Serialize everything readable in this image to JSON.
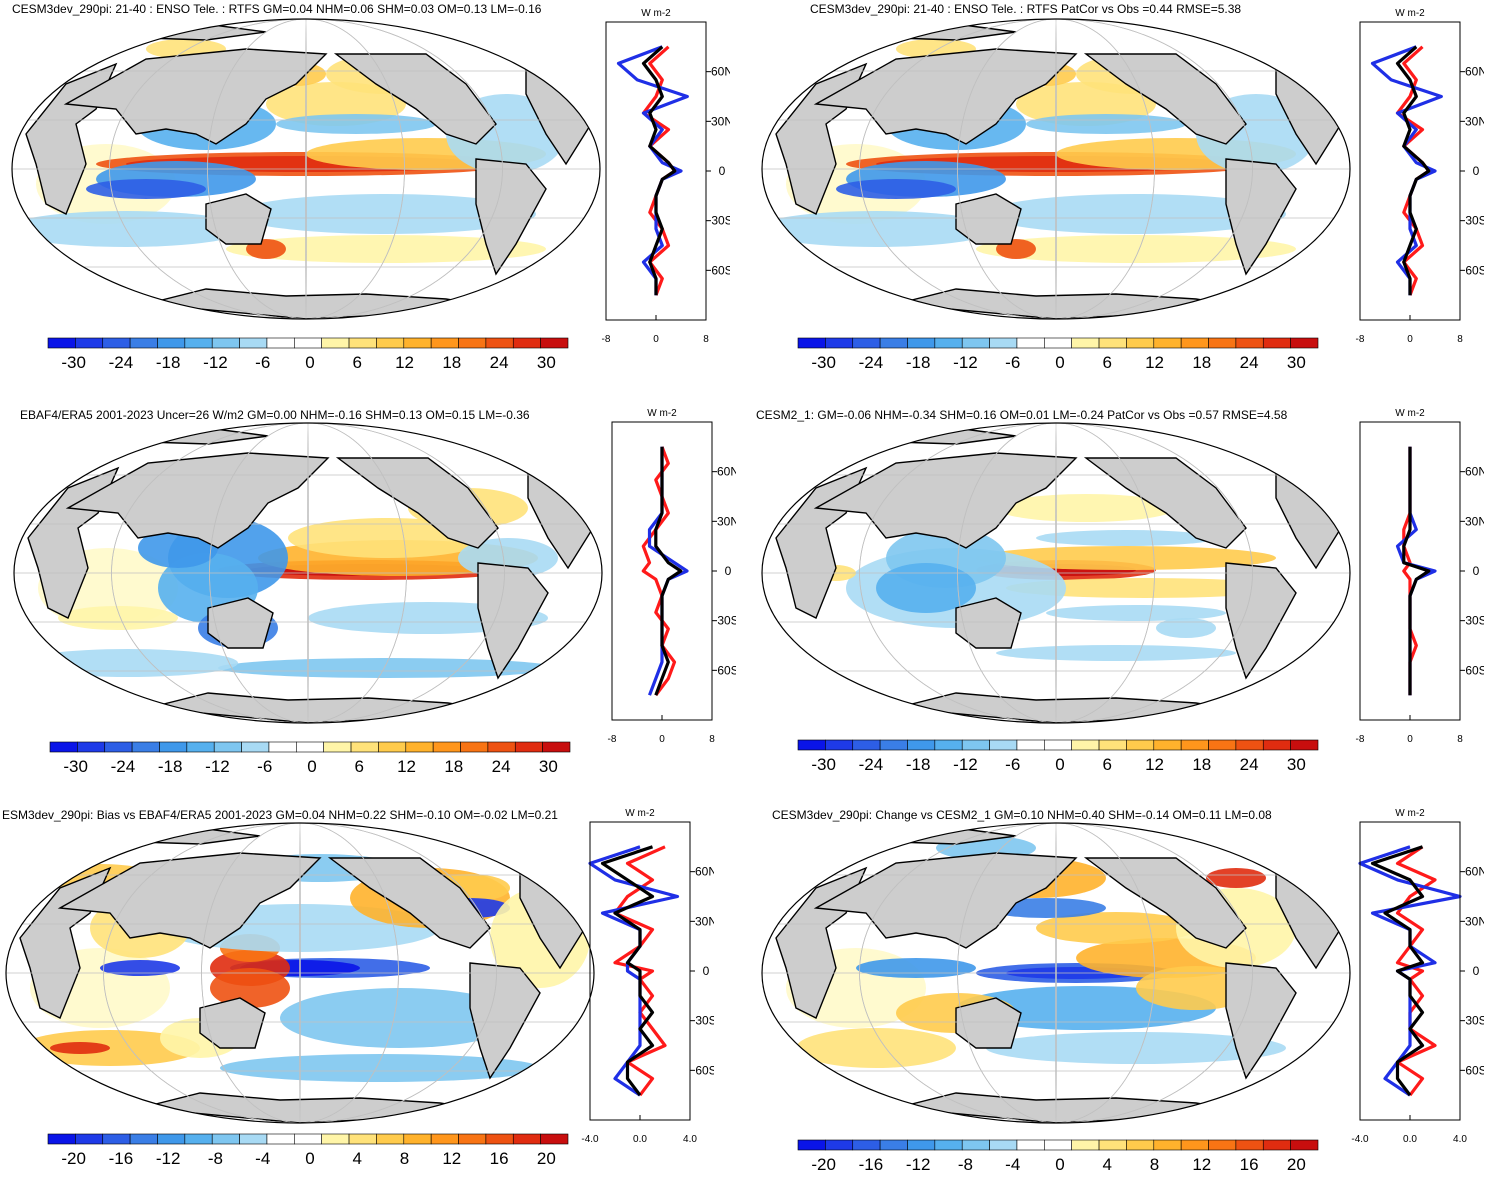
{
  "panels": [
    {
      "title": "CESM3dev_290pi: 21-40 : ENSO Tele. : RTFS GM=0.04 NHM=0.06 SHM=0.03 OM=0.13 LM=-0.16",
      "colorbar": [
        "-30",
        "-24",
        "-18",
        "-12",
        "-6",
        "0",
        "6",
        "12",
        "18",
        "24",
        "30"
      ],
      "profile_unit": "W m-2",
      "profile_x_ticks": [
        "-8",
        "0",
        "8"
      ],
      "profile_lat_ticks": [
        "60N",
        "30N",
        "0",
        "30S",
        "60S"
      ]
    },
    {
      "title": "CESM3dev_290pi: 21-40 : ENSO Tele. : RTFS PatCor vs Obs =0.44 RMSE=5.38",
      "colorbar": [
        "-30",
        "-24",
        "-18",
        "-12",
        "-6",
        "0",
        "6",
        "12",
        "18",
        "24",
        "30"
      ],
      "profile_unit": "W m-2",
      "profile_x_ticks": [
        "-8",
        "0",
        "8"
      ],
      "profile_lat_ticks": [
        "60N",
        "30N",
        "0",
        "30S",
        "60S"
      ]
    },
    {
      "title": "EBAF4/ERA5 2001-2023 Uncer=26 W/m2 GM=0.00 NHM=-0.16 SHM=0.13 OM=0.15 LM=-0.36",
      "colorbar": [
        "-30",
        "-24",
        "-18",
        "-12",
        "-6",
        "0",
        "6",
        "12",
        "18",
        "24",
        "30"
      ],
      "profile_unit": "W m-2",
      "profile_x_ticks": [
        "-8",
        "0",
        "8"
      ],
      "profile_lat_ticks": [
        "60N",
        "30N",
        "0",
        "30S",
        "60S"
      ]
    },
    {
      "title": "CESM2_1: GM=-0.06 NHM=-0.34 SHM=0.16 OM=0.01 LM=-0.24 PatCor vs Obs =0.57 RMSE=4.58",
      "colorbar": [
        "-30",
        "-24",
        "-18",
        "-12",
        "-6",
        "0",
        "6",
        "12",
        "18",
        "24",
        "30"
      ],
      "profile_unit": "W m-2",
      "profile_x_ticks": [
        "-8",
        "0",
        "8"
      ],
      "profile_lat_ticks": [
        "60N",
        "30N",
        "0",
        "30S",
        "60S"
      ]
    },
    {
      "title": "ESM3dev_290pi: Bias vs EBAF4/ERA5 2001-2023 GM=0.04 NHM=0.22 SHM=-0.10 OM=-0.02 LM=0.21",
      "colorbar": [
        "-20",
        "-16",
        "-12",
        "-8",
        "-4",
        "0",
        "4",
        "8",
        "12",
        "16",
        "20"
      ],
      "profile_unit": "W m-2",
      "profile_x_ticks": [
        "-4.0",
        "0.0",
        "4.0"
      ],
      "profile_lat_ticks": [
        "60N",
        "30N",
        "0",
        "30S",
        "60S"
      ]
    },
    {
      "title": "CESM3dev_290pi: Change vs CESM2_1 GM=0.10 NHM=0.40 SHM=-0.14 OM=0.11 LM=0.08",
      "colorbar": [
        "-20",
        "-16",
        "-12",
        "-8",
        "-4",
        "0",
        "4",
        "8",
        "12",
        "16",
        "20"
      ],
      "profile_unit": "W m-2",
      "profile_x_ticks": [
        "-4.0",
        "0.0",
        "4.0"
      ],
      "profile_lat_ticks": [
        "60N",
        "30N",
        "0",
        "30S",
        "60S"
      ]
    }
  ],
  "colors": {
    "palette": [
      "#0a14e8",
      "#1e3ae8",
      "#2d5ee6",
      "#3a7ee6",
      "#3f98ea",
      "#56b0ee",
      "#7ec6f0",
      "#a8daf4",
      "#ffffff",
      "#ffffff",
      "#fff5a8",
      "#ffe27a",
      "#ffcb4c",
      "#ffb22c",
      "#ff961c",
      "#f87414",
      "#ee5212",
      "#e02c10",
      "#c80e0e"
    ],
    "land": "#cdcdcd",
    "grid": "#c0c0c0",
    "profile_model": "#ff1a1a",
    "profile_obs": "#1f2fe6",
    "profile_diff": "#000000"
  },
  "chart_data": [
    {
      "type": "heatmap",
      "title": "CESM3dev_290pi: 21-40 : ENSO Tele. : RTFS GM=0.04 NHM=0.06 SHM=0.03 OM=0.13 LM=-0.16",
      "colorbar_range": [
        -30,
        30
      ],
      "zonal_profile": {
        "lat": [
          75,
          65,
          55,
          45,
          35,
          25,
          15,
          5,
          0,
          -5,
          -15,
          -25,
          -35,
          -45,
          -55,
          -65,
          -75
        ],
        "series": [
          {
            "name": "model",
            "color": "#ff1a1a",
            "values": [
              2,
              -1,
              1,
              0,
              -2,
              2,
              -1,
              2,
              3,
              1,
              0,
              -1,
              1,
              2,
              -1,
              1,
              0
            ]
          },
          {
            "name": "obs",
            "color": "#1f2fe6",
            "values": [
              1,
              -6,
              -3,
              5,
              -2,
              1,
              -1,
              1,
              4,
              1,
              0,
              0,
              0,
              1,
              -2,
              0,
              0
            ]
          },
          {
            "name": "diff",
            "color": "#000000",
            "values": [
              1,
              -2,
              0,
              1,
              -1,
              0,
              -1,
              2,
              3,
              1,
              0,
              0,
              1,
              0,
              -1,
              0,
              0
            ]
          }
        ],
        "xlim": [
          -8,
          8
        ]
      }
    },
    {
      "type": "heatmap",
      "title": "CESM3dev_290pi: 21-40 : ENSO Tele. : RTFS PatCor vs Obs =0.44 RMSE=5.38",
      "colorbar_range": [
        -30,
        30
      ],
      "zonal_profile": {
        "lat": [
          75,
          65,
          55,
          45,
          35,
          25,
          15,
          5,
          0,
          -5,
          -15,
          -25,
          -35,
          -45,
          -55,
          -65,
          -75
        ],
        "series": [
          {
            "name": "model",
            "color": "#ff1a1a",
            "values": [
              2,
              -1,
              1,
              0,
              -2,
              2,
              -1,
              2,
              3,
              1,
              0,
              -1,
              1,
              2,
              -1,
              1,
              0
            ]
          },
          {
            "name": "obs",
            "color": "#1f2fe6",
            "values": [
              1,
              -6,
              -3,
              5,
              -2,
              1,
              -1,
              1,
              4,
              1,
              0,
              0,
              0,
              1,
              -2,
              0,
              0
            ]
          },
          {
            "name": "diff",
            "color": "#000000",
            "values": [
              1,
              -2,
              0,
              1,
              -1,
              0,
              -1,
              2,
              3,
              1,
              0,
              0,
              1,
              0,
              -1,
              0,
              0
            ]
          }
        ],
        "xlim": [
          -8,
          8
        ]
      }
    },
    {
      "type": "heatmap",
      "title": "EBAF4/ERA5 2001-2023 Uncer=26 W/m2 GM=0.00 NHM=-0.16 SHM=0.13 OM=0.15 LM=-0.36",
      "colorbar_range": [
        -30,
        30
      ],
      "zonal_profile": {
        "lat": [
          75,
          65,
          55,
          45,
          35,
          25,
          15,
          5,
          0,
          -5,
          -15,
          -25,
          -35,
          -45,
          -55,
          -65,
          -75
        ],
        "series": [
          {
            "name": "model",
            "color": "#ff1a1a",
            "values": [
              0,
              1,
              -1,
              0,
              1,
              -1,
              -3,
              -2,
              -3,
              -1,
              0,
              -1,
              1,
              0,
              2,
              1,
              -1
            ]
          },
          {
            "name": "obs",
            "color": "#1f2fe6",
            "values": [
              0,
              0,
              0,
              0,
              0,
              -2,
              -2,
              2,
              4,
              1,
              0,
              0,
              0,
              0,
              0,
              -1,
              -2
            ]
          },
          {
            "name": "diff",
            "color": "#000000",
            "values": [
              0,
              0,
              0,
              0,
              0,
              -1,
              -1,
              1,
              3,
              1,
              0,
              0,
              0,
              0,
              1,
              0,
              -1
            ]
          }
        ],
        "xlim": [
          -8,
          8
        ]
      }
    },
    {
      "type": "heatmap",
      "title": "CESM2_1: GM=-0.06 NHM=-0.34 SHM=0.16 OM=0.01 LM=-0.24 PatCor vs Obs =0.57 RMSE=4.58",
      "colorbar_range": [
        -30,
        30
      ],
      "zonal_profile": {
        "lat": [
          75,
          65,
          55,
          45,
          35,
          25,
          15,
          5,
          0,
          -5,
          -15,
          -25,
          -35,
          -45,
          -55,
          -65,
          -75
        ],
        "series": [
          {
            "name": "model",
            "color": "#ff1a1a",
            "values": [
              0,
              0,
              0,
              0,
              0,
              -1,
              -1,
              0,
              -1,
              0,
              0,
              0,
              0,
              1,
              0,
              0,
              0
            ]
          },
          {
            "name": "obs",
            "color": "#1f2fe6",
            "values": [
              0,
              0,
              0,
              0,
              0,
              1,
              -2,
              -1,
              4,
              1,
              0,
              0,
              0,
              0,
              0,
              0,
              0
            ]
          },
          {
            "name": "diff",
            "color": "#000000",
            "values": [
              0,
              0,
              0,
              0,
              0,
              0,
              -1,
              -1,
              3,
              1,
              0,
              0,
              0,
              0,
              0,
              0,
              0
            ]
          }
        ],
        "xlim": [
          -8,
          8
        ]
      }
    },
    {
      "type": "heatmap",
      "title": "ESM3dev_290pi: Bias vs EBAF4/ERA5 2001-2023 GM=0.04 NHM=0.22 SHM=-0.10 OM=-0.02 LM=0.21",
      "colorbar_range": [
        -20,
        20
      ],
      "zonal_profile": {
        "lat": [
          75,
          65,
          55,
          45,
          35,
          25,
          15,
          5,
          0,
          -5,
          -15,
          -25,
          -35,
          -45,
          -55,
          -65,
          -75
        ],
        "series": [
          {
            "name": "model",
            "color": "#ff1a1a",
            "values": [
              2,
              -1,
              1,
              -1,
              -2,
              1,
              0,
              -2,
              1,
              0,
              1,
              0,
              1,
              2,
              -1,
              1,
              0
            ]
          },
          {
            "name": "obs",
            "color": "#1f2fe6",
            "values": [
              0,
              -4,
              -2,
              3,
              -3,
              0,
              0,
              -1,
              -1,
              0,
              0,
              0,
              0,
              0,
              -1,
              -2,
              0
            ]
          },
          {
            "name": "diff",
            "color": "#000000",
            "values": [
              1,
              -3,
              -1,
              1,
              -2,
              0,
              0,
              -1,
              0,
              0,
              0,
              1,
              0,
              1,
              -1,
              -1,
              0
            ]
          }
        ],
        "xlim": [
          -4,
          4
        ]
      }
    },
    {
      "type": "heatmap",
      "title": "CESM3dev_290pi: Change vs CESM2_1 GM=0.10 NHM=0.40 SHM=-0.14 OM=0.11 LM=0.08",
      "colorbar_range": [
        -20,
        20
      ],
      "zonal_profile": {
        "lat": [
          75,
          65,
          55,
          45,
          35,
          25,
          15,
          5,
          0,
          -5,
          -15,
          -25,
          -35,
          -45,
          -55,
          -65,
          -75
        ],
        "series": [
          {
            "name": "model",
            "color": "#ff1a1a",
            "values": [
              1,
              -1,
              2,
              0,
              -1,
              1,
              0,
              -1,
              1,
              0,
              1,
              0,
              0,
              2,
              -1,
              1,
              0
            ]
          },
          {
            "name": "obs",
            "color": "#1f2fe6",
            "values": [
              0,
              -4,
              -1,
              4,
              -3,
              0,
              0,
              2,
              -1,
              0,
              0,
              0,
              0,
              0,
              -1,
              -2,
              0
            ]
          },
          {
            "name": "diff",
            "color": "#000000",
            "values": [
              1,
              -3,
              0,
              1,
              -2,
              0,
              0,
              1,
              -1,
              0,
              0,
              1,
              0,
              1,
              -1,
              -1,
              0
            ]
          }
        ],
        "xlim": [
          -4,
          4
        ]
      }
    }
  ]
}
